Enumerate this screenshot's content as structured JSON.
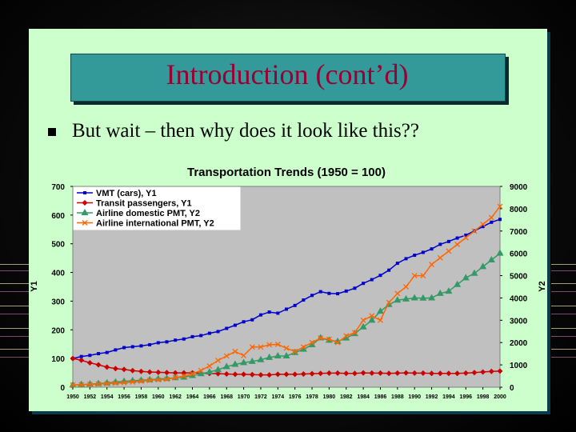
{
  "slide": {
    "title": "Introduction (cont’d)",
    "bullet_text": "But wait – then why does it look like this??",
    "colors": {
      "slide_bg": "#ccffcc",
      "title_bg": "#339999",
      "title_text": "#990033",
      "plot_bg": "#c0c0c0"
    }
  },
  "chart_data": {
    "type": "line",
    "title": "Transportation Trends (1950 = 100)",
    "y1label": "Y1",
    "y2label": "Y2",
    "x": [
      1950,
      1951,
      1952,
      1953,
      1954,
      1955,
      1956,
      1957,
      1958,
      1959,
      1960,
      1961,
      1962,
      1963,
      1964,
      1965,
      1966,
      1967,
      1968,
      1969,
      1970,
      1971,
      1972,
      1973,
      1974,
      1975,
      1976,
      1977,
      1978,
      1979,
      1980,
      1981,
      1982,
      1983,
      1984,
      1985,
      1986,
      1987,
      1988,
      1989,
      1990,
      1991,
      1992,
      1993,
      1994,
      1995,
      1996,
      1997,
      1998,
      1999,
      2000
    ],
    "xticks": [
      "1950",
      "1952",
      "1954",
      "1956",
      "1958",
      "1960",
      "1962",
      "1964",
      "1966",
      "1968",
      "1970",
      "1972",
      "1974",
      "1976",
      "1978",
      "1980",
      "1982",
      "1984",
      "1986",
      "1988",
      "1990",
      "1992",
      "1994",
      "1996",
      "1998",
      "2000"
    ],
    "y1ticks": [
      "0",
      "100",
      "200",
      "300",
      "400",
      "500",
      "600",
      "700"
    ],
    "y2ticks": [
      "0",
      "1000",
      "2000",
      "3000",
      "4000",
      "5000",
      "6000",
      "7000",
      "8000",
      "9000"
    ],
    "y1lim": [
      0,
      700
    ],
    "y2lim": [
      0,
      9000
    ],
    "grid": false,
    "legend_position": "top-left",
    "series": [
      {
        "name": "VMT (cars), Y1",
        "axis": "y1",
        "color": "#0000cc",
        "marker": "square",
        "values": [
          100,
          107,
          111,
          117,
          121,
          130,
          138,
          141,
          144,
          148,
          155,
          158,
          164,
          168,
          176,
          180,
          188,
          194,
          205,
          216,
          228,
          235,
          252,
          262,
          258,
          272,
          285,
          304,
          320,
          333,
          327,
          326,
          335,
          345,
          362,
          375,
          390,
          408,
          432,
          448,
          460,
          470,
          482,
          498,
          508,
          520,
          530,
          545,
          560,
          575,
          585
        ]
      },
      {
        "name": "Transit passengers, Y1",
        "axis": "y1",
        "color": "#cc0000",
        "marker": "diamond",
        "values": [
          100,
          94,
          85,
          78,
          70,
          65,
          62,
          58,
          55,
          53,
          52,
          51,
          50,
          50,
          50,
          49,
          48,
          47,
          46,
          45,
          45,
          44,
          43,
          43,
          45,
          45,
          45,
          46,
          47,
          48,
          49,
          49,
          48,
          48,
          50,
          49,
          49,
          48,
          49,
          50,
          49,
          49,
          48,
          48,
          48,
          48,
          49,
          51,
          53,
          55,
          56
        ]
      },
      {
        "name": "Airline domestic PMT, Y2",
        "axis": "y2",
        "color": "#339966",
        "marker": "triangle",
        "values": [
          100,
          120,
          140,
          160,
          190,
          230,
          260,
          290,
          310,
          330,
          370,
          390,
          420,
          450,
          520,
          600,
          680,
          780,
          920,
          1020,
          1100,
          1150,
          1230,
          1330,
          1400,
          1400,
          1550,
          1700,
          1900,
          2210,
          2100,
          2050,
          2200,
          2400,
          2700,
          3000,
          3400,
          3700,
          3900,
          3950,
          4000,
          3990,
          4000,
          4200,
          4300,
          4600,
          4900,
          5100,
          5400,
          5700,
          6000
        ]
      },
      {
        "name": "Airline international PMT, Y2",
        "axis": "y2",
        "color": "#ff6600",
        "marker": "x",
        "values": [
          100,
          110,
          125,
          140,
          160,
          180,
          200,
          230,
          270,
          310,
          330,
          360,
          430,
          500,
          600,
          750,
          950,
          1200,
          1400,
          1600,
          1420,
          1800,
          1800,
          1900,
          1920,
          1750,
          1600,
          1800,
          2000,
          2200,
          2150,
          2000,
          2300,
          2450,
          3000,
          3200,
          3000,
          3800,
          4200,
          4500,
          5000,
          5000,
          5500,
          5800,
          6100,
          6400,
          6700,
          7000,
          7300,
          7600,
          8100
        ]
      }
    ]
  }
}
